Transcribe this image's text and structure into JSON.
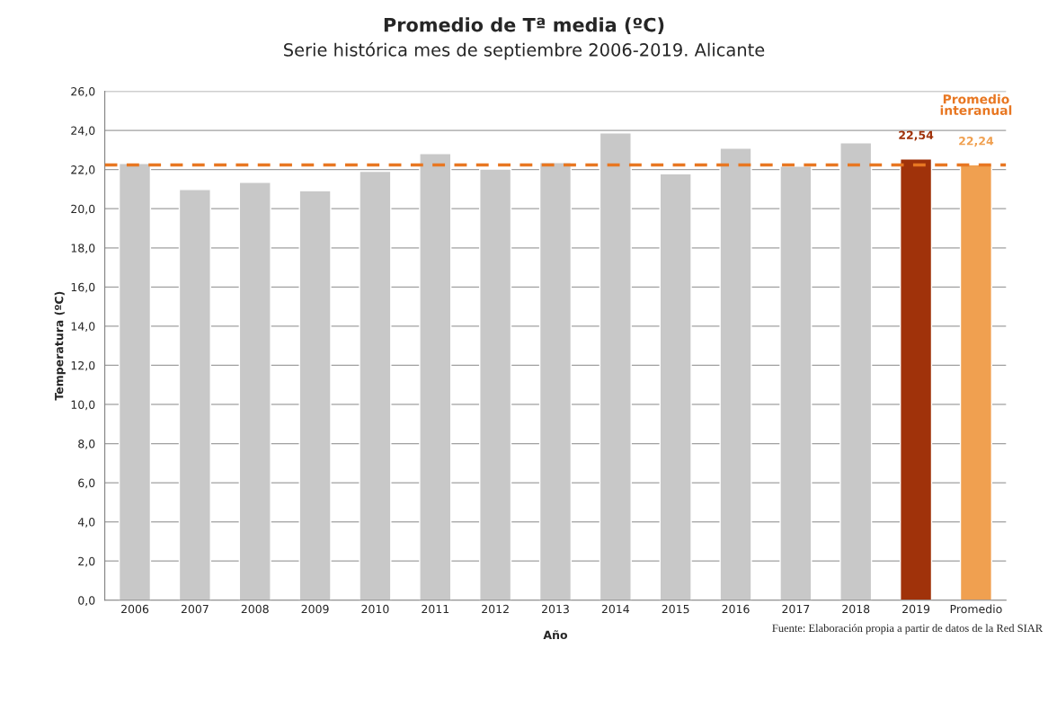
{
  "chart_data": {
    "type": "bar",
    "title": "Promedio de Tª media (ºC)",
    "subtitle": "Serie histórica mes de septiembre 2006-2019. Alicante",
    "xlabel": "Año",
    "ylabel": "Temperatura (ºC)",
    "categories": [
      "2006",
      "2007",
      "2008",
      "2009",
      "2010",
      "2011",
      "2012",
      "2013",
      "2014",
      "2015",
      "2016",
      "2017",
      "2018",
      "2019",
      "Promedio"
    ],
    "values": [
      22.31,
      20.98,
      21.35,
      20.92,
      21.91,
      22.82,
      22.03,
      22.36,
      23.88,
      21.79,
      23.09,
      22.18,
      23.37,
      22.54,
      22.24
    ],
    "colors": [
      "#c8c8c8",
      "#c8c8c8",
      "#c8c8c8",
      "#c8c8c8",
      "#c8c8c8",
      "#c8c8c8",
      "#c8c8c8",
      "#c8c8c8",
      "#c8c8c8",
      "#c8c8c8",
      "#c8c8c8",
      "#c8c8c8",
      "#c8c8c8",
      "#a0320a",
      "#f0a050"
    ],
    "value_labels": [
      null,
      null,
      null,
      null,
      null,
      null,
      null,
      null,
      null,
      null,
      null,
      null,
      null,
      "22,54",
      "22,24"
    ],
    "ylim": [
      0,
      26
    ],
    "yticks": [
      {
        "value": 0,
        "label": "0,0"
      },
      {
        "value": 2,
        "label": "2,0"
      },
      {
        "value": 4,
        "label": "4,0"
      },
      {
        "value": 6,
        "label": "6,0"
      },
      {
        "value": 8,
        "label": "8,0"
      },
      {
        "value": 10,
        "label": "10,0"
      },
      {
        "value": 12,
        "label": "12,0"
      },
      {
        "value": 14,
        "label": "14,0"
      },
      {
        "value": 16,
        "label": "16,0"
      },
      {
        "value": 18,
        "label": "18,0"
      },
      {
        "value": 20,
        "label": "20,0"
      },
      {
        "value": 22,
        "label": "22,0"
      },
      {
        "value": 24,
        "label": "24,0"
      },
      {
        "value": 26,
        "label": "26,0"
      }
    ],
    "grid": "y",
    "ref_lines": [
      {
        "axis": "y",
        "value": 22.24,
        "label": "Promedio\ninteranual",
        "color": "#e87722",
        "line_style": "dashed"
      }
    ],
    "annotations": [
      "Fuente: Elaboración propia a partir de datos de la Red SIAR"
    ]
  }
}
